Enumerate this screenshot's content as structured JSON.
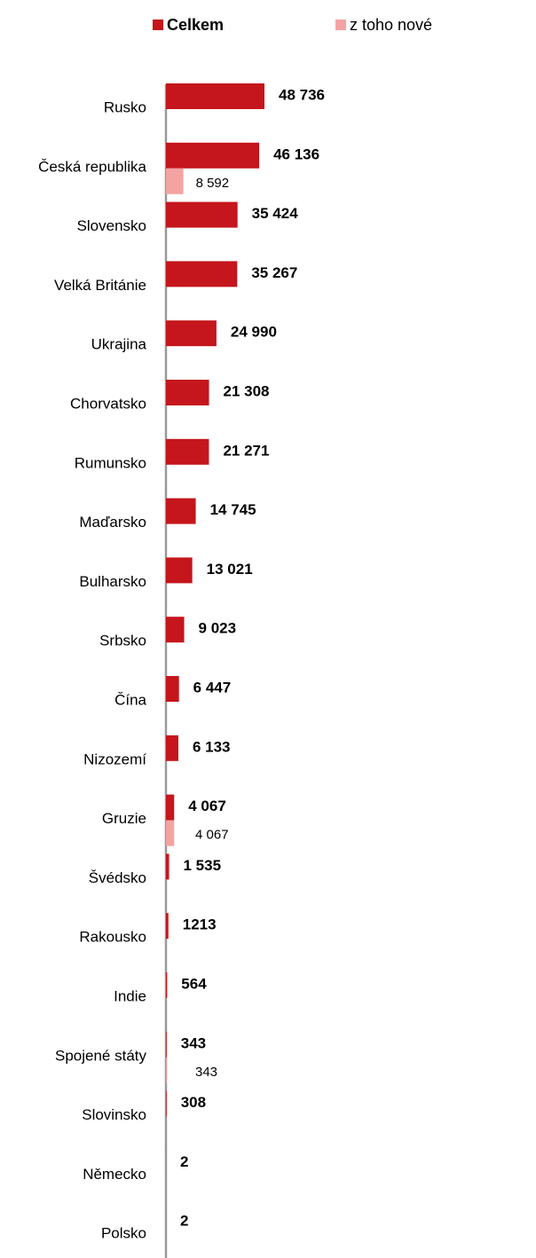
{
  "chart_data": {
    "type": "bar",
    "orientation": "horizontal",
    "categories": [
      "Rusko",
      "Česká republika",
      "Slovensko",
      "Velká Británie",
      "Ukrajina",
      "Chorvatsko",
      "Rumunsko",
      "Maďarsko",
      "Bulharsko",
      "Srbsko",
      "Čína",
      "Nizozemí",
      "Gruzie",
      "Švédsko",
      "Rakousko",
      "Indie",
      "Spojené státy",
      "Slovinsko",
      "Německo",
      "Polsko"
    ],
    "series": [
      {
        "name": "Celkem",
        "color": "#c4161c",
        "values": [
          48736,
          46136,
          35424,
          35267,
          24990,
          21308,
          21271,
          14745,
          13021,
          9023,
          6447,
          6133,
          4067,
          1535,
          1213,
          564,
          343,
          308,
          2,
          2
        ],
        "value_labels": [
          "48 736",
          "46 136",
          "35 424",
          "35 267",
          "24 990",
          "21 308",
          "21 271",
          "14 745",
          "13 021",
          "9 023",
          "6 447",
          "6 133",
          "4 067",
          "1 535",
          "1213",
          "564",
          "343",
          "308",
          "2",
          "2"
        ]
      },
      {
        "name": "z toho nové",
        "color": "#f4a3a3",
        "values": [
          null,
          8592,
          null,
          null,
          null,
          null,
          null,
          null,
          null,
          null,
          null,
          null,
          4067,
          null,
          null,
          null,
          343,
          null,
          null,
          null
        ],
        "value_labels": [
          null,
          "8 592",
          null,
          null,
          null,
          null,
          null,
          null,
          null,
          null,
          null,
          null,
          "4 067",
          null,
          null,
          null,
          "343",
          null,
          null,
          null
        ]
      }
    ],
    "legend": "top"
  }
}
